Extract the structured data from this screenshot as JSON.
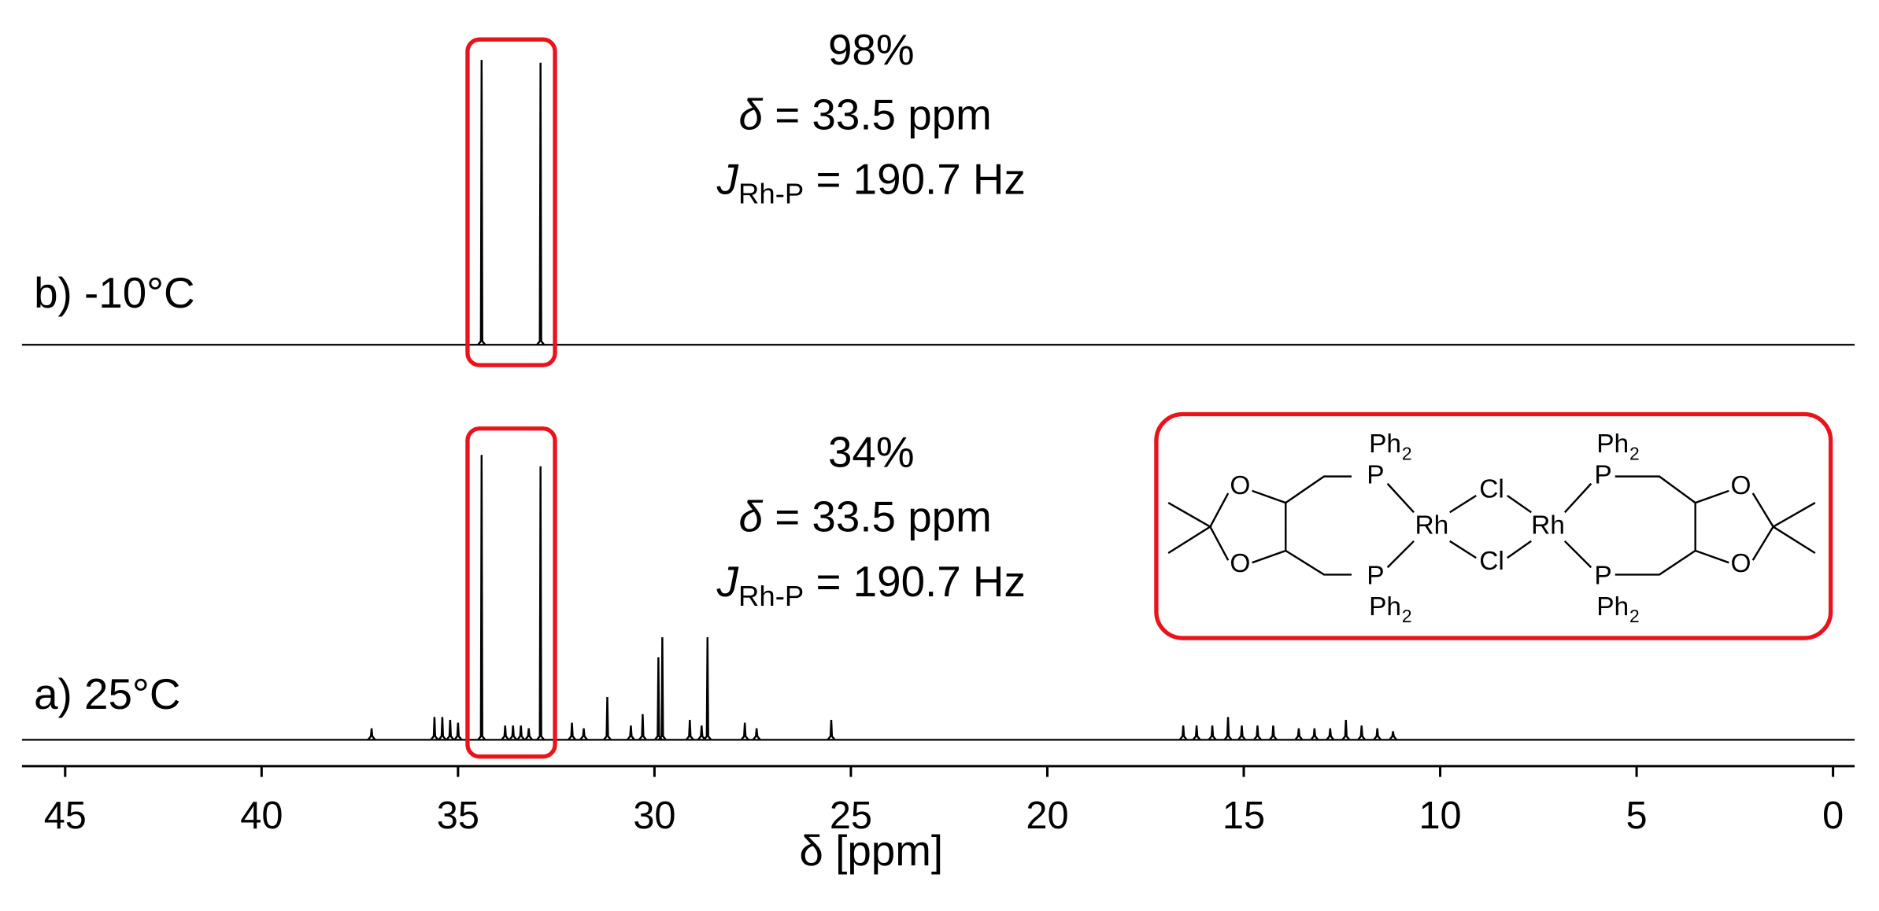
{
  "chart_data": {
    "type": "spectrum",
    "xlabel": "δ [ppm]",
    "xlim": [
      46.1,
      -0.55
    ],
    "xticks": [
      45,
      40,
      35,
      30,
      25,
      20,
      15,
      10,
      5,
      0
    ],
    "highlight_color": "#e8141c",
    "series": [
      {
        "name": "b) -10°C",
        "color": "#000000",
        "x": [
          34.4,
          32.9
        ],
        "values": [
          100,
          99
        ],
        "annotation": {
          "percent": "98%",
          "shift_symbol": "δ",
          "shift": " = 33.5 ppm",
          "coupling_symbol": "J",
          "coupling_subscript": "Rh-P",
          "coupling": " = 190.7 Hz"
        }
      },
      {
        "name": "a) 25°C",
        "color": "#000000",
        "x": [
          37.2,
          35.6,
          35.4,
          35.2,
          35.0,
          34.4,
          33.8,
          33.6,
          33.4,
          33.2,
          32.9,
          32.1,
          31.8,
          31.2,
          30.6,
          30.3,
          29.9,
          29.8,
          29.1,
          28.8,
          28.65,
          27.7,
          27.4,
          25.5,
          16.54,
          16.2,
          15.8,
          15.4,
          15.05,
          14.65,
          14.25,
          13.6,
          13.2,
          12.8,
          12.4,
          12.0,
          11.6,
          11.2
        ],
        "values": [
          4,
          8,
          8,
          7,
          6,
          100,
          5,
          5,
          5,
          4,
          96,
          6,
          4,
          15,
          5,
          9,
          29,
          36,
          7,
          5,
          36,
          6,
          4,
          7,
          5,
          5,
          5,
          8,
          5,
          5,
          5,
          4,
          4,
          4,
          7,
          5,
          4,
          3
        ],
        "annotation": {
          "percent": "34%",
          "shift_symbol": "δ",
          "shift": " = 33.5 ppm",
          "coupling_symbol": "J",
          "coupling_subscript": "Rh-P",
          "coupling": " = 190.7 Hz"
        }
      }
    ]
  },
  "structure": {
    "labels": [
      "O",
      "P",
      "Rh",
      "Cl",
      "Ph",
      "2"
    ]
  }
}
